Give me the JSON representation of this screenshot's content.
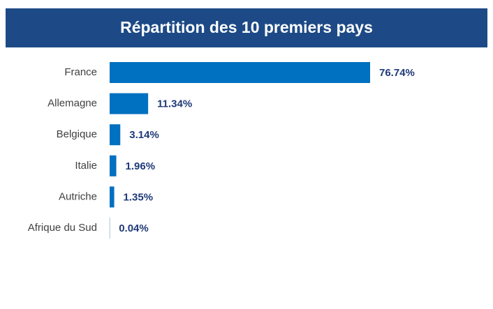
{
  "chart_data": {
    "type": "bar",
    "orientation": "horizontal",
    "title": "Répartition des 10 premiers pays",
    "categories": [
      "France",
      "Allemagne",
      "Belgique",
      "Italie",
      "Autriche",
      "Afrique du Sud"
    ],
    "values": [
      76.74,
      11.34,
      3.14,
      1.96,
      1.35,
      0.04
    ],
    "value_labels": [
      "76.74%",
      "11.34%",
      "3.14%",
      "1.96%",
      "1.35%",
      "0.04%"
    ],
    "color": "#0070c0"
  }
}
